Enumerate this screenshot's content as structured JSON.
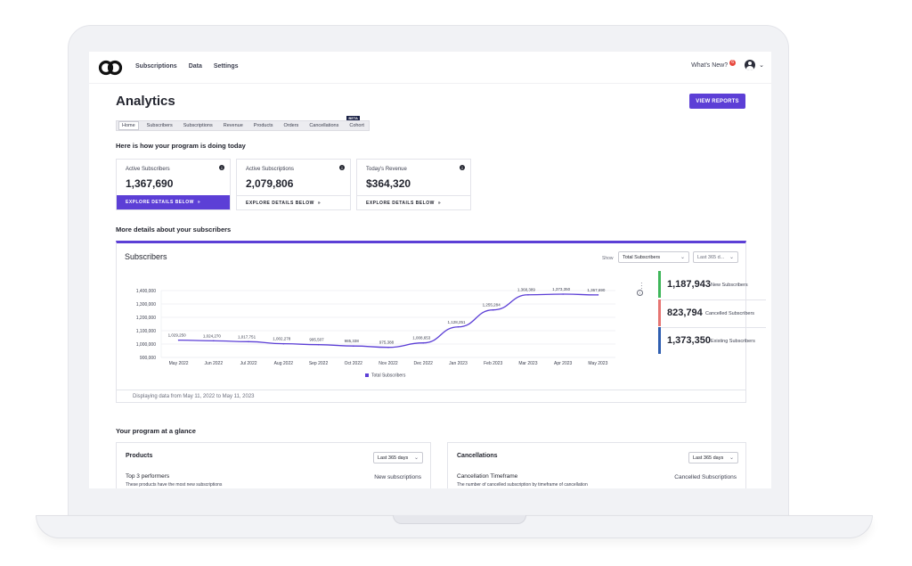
{
  "nav": {
    "links": [
      "Subscriptions",
      "Data",
      "Settings"
    ],
    "whats_new": "What's New?",
    "notification_count": "6"
  },
  "page": {
    "title": "Analytics",
    "view_reports": "VIEW REPORTS"
  },
  "tabs": [
    {
      "label": "Home",
      "active": true
    },
    {
      "label": "Subscribers"
    },
    {
      "label": "Subscriptions"
    },
    {
      "label": "Revenue"
    },
    {
      "label": "Products"
    },
    {
      "label": "Orders"
    },
    {
      "label": "Cancellations"
    },
    {
      "label": "Cohort",
      "badge": "BETA"
    }
  ],
  "overview": {
    "heading": "Here is how your program is doing today",
    "cards": [
      {
        "label": "Active Subscribers",
        "value": "1,367,690",
        "cta": "EXPLORE DETAILS BELOW"
      },
      {
        "label": "Active Subscriptions",
        "value": "2,079,806",
        "cta": "EXPLORE DETAILS BELOW"
      },
      {
        "label": "Today's Revenue",
        "value": "$364,320",
        "cta": "EXPLORE DETAILS BELOW"
      }
    ]
  },
  "subscribers": {
    "heading": "More details about your subscribers",
    "panel_title": "Subscribers",
    "show_label": "Show",
    "metric_select": "Total Subscribers",
    "range_select": "Last 365 d...",
    "metrics": [
      {
        "value": "1,187,943",
        "label": "New Subscribers",
        "color": "#3fb65a"
      },
      {
        "value": "823,794",
        "label": "Cancelled Subscribers",
        "color": "#e67572"
      },
      {
        "value": "1,373,350",
        "label": "Existing Subscribers",
        "color": "#2f5eb0"
      }
    ],
    "footer": "Displaying data from May 11, 2022 to May 11, 2023"
  },
  "chart_data": {
    "type": "line",
    "categories": [
      "May 2022",
      "Jun 2022",
      "Jul 2022",
      "Aug 2022",
      "Sep 2022",
      "Oct 2022",
      "Nov 2022",
      "Dec 2022",
      "Jan 2023",
      "Feb 2023",
      "Mar 2023",
      "Apr 2023",
      "May 2023"
    ],
    "series": [
      {
        "name": "Total Subscribers",
        "values": [
          1029250,
          1024270,
          1017751,
          1002278,
          995507,
          985338,
          975388,
          1008653,
          1128251,
          1255284,
          1368389,
          1373350,
          1367690
        ],
        "color": "#5c3fd6"
      }
    ],
    "y_ticks": [
      "1,400,000",
      "1,300,000",
      "1,200,000",
      "1,100,000",
      "1,000,000",
      "900,000"
    ],
    "ylim": [
      900000,
      1400000
    ],
    "legend": "bottom-center"
  },
  "glance": {
    "heading": "Your program at a glance",
    "products": {
      "title": "Products",
      "range": "Last 365 days",
      "sub": "Top 3 performers",
      "desc": "These products have the most new subscriptions",
      "right": "New subscriptions"
    },
    "cancellations": {
      "title": "Cancellations",
      "range": "Last 365 days",
      "sub": "Cancellation Timeframe",
      "desc": "The number of cancelled subscription by timeframe of cancellation",
      "right": "Cancelled Subscriptions"
    }
  }
}
